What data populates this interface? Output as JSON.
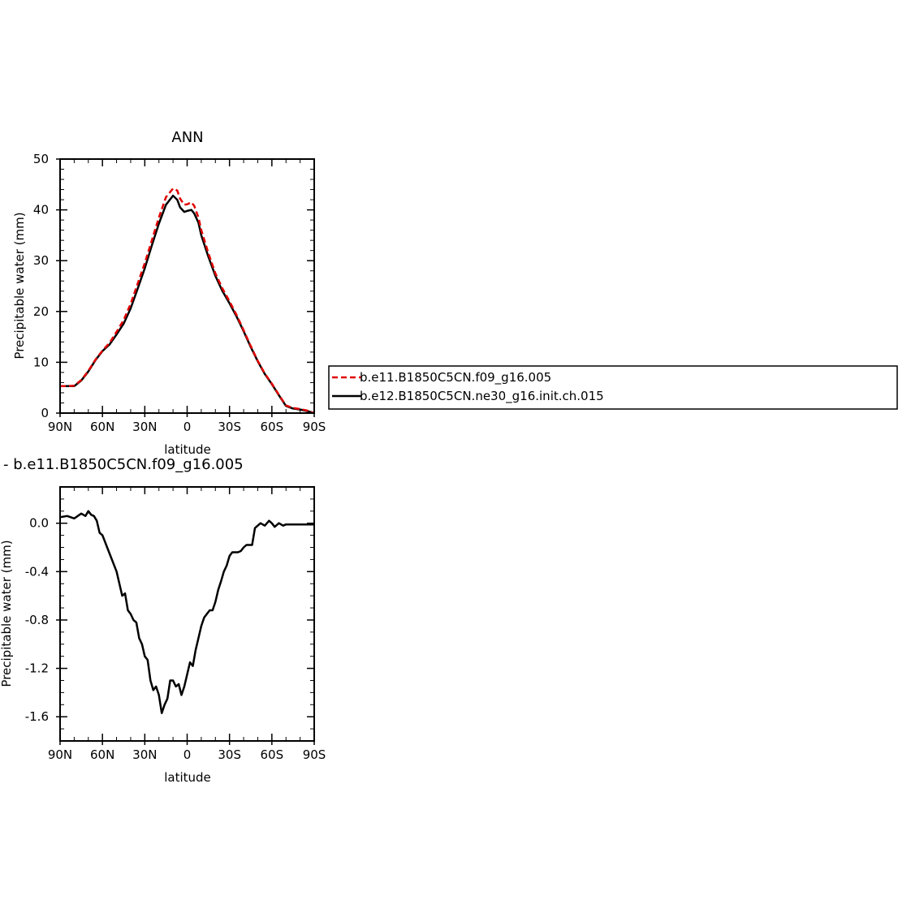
{
  "chart_data": [
    {
      "type": "line",
      "title": "ANN",
      "xlabel": "latitude",
      "ylabel": "Precipitable water (mm)",
      "xlim": [
        90,
        -90
      ],
      "ylim": [
        0,
        50
      ],
      "x_ticks": [
        90,
        60,
        30,
        0,
        -30,
        -60,
        -90
      ],
      "x_tick_labels": [
        "90N",
        "60N",
        "30N",
        "0",
        "30S",
        "60S",
        "90S"
      ],
      "y_ticks": [
        0,
        10,
        20,
        30,
        40,
        50
      ],
      "y_tick_labels": [
        "0",
        "10",
        "20",
        "30",
        "40",
        "50"
      ],
      "legend": "right",
      "series": [
        {
          "name": "b.e11.B1850C5CN.f09_g16.005",
          "color": "#e00000",
          "dash": "dashed",
          "x": [
            90,
            85,
            80,
            75,
            70,
            65,
            60,
            55,
            50,
            45,
            40,
            35,
            30,
            25,
            20,
            15,
            10,
            7,
            5,
            2,
            0,
            -3,
            -5,
            -8,
            -10,
            -15,
            -20,
            -25,
            -30,
            -35,
            -40,
            -45,
            -50,
            -55,
            -60,
            -65,
            -70,
            -75,
            -80,
            -85,
            -90
          ],
          "y": [
            5.3,
            5.3,
            5.4,
            6.5,
            8.3,
            10.5,
            12.3,
            13.8,
            16.0,
            18.3,
            21.5,
            25.5,
            29.5,
            34.0,
            38.5,
            42.5,
            44.2,
            43.8,
            42.2,
            41.0,
            41.1,
            41.5,
            40.8,
            38.5,
            36.0,
            31.5,
            27.5,
            24.5,
            22.0,
            19.3,
            16.3,
            13.2,
            10.3,
            7.8,
            5.8,
            3.6,
            1.5,
            1.0,
            0.8,
            0.5,
            0.0
          ]
        },
        {
          "name": "b.e12.B1850C5CN.ne30_g16.init.ch.015",
          "color": "#000000",
          "dash": "solid",
          "x": [
            90,
            85,
            80,
            75,
            70,
            65,
            60,
            55,
            50,
            45,
            40,
            35,
            30,
            25,
            20,
            15,
            10,
            7,
            5,
            2,
            0,
            -3,
            -5,
            -8,
            -10,
            -15,
            -20,
            -25,
            -30,
            -35,
            -40,
            -45,
            -50,
            -55,
            -60,
            -65,
            -70,
            -75,
            -80,
            -85,
            -90
          ],
          "y": [
            5.3,
            5.3,
            5.3,
            6.4,
            8.2,
            10.4,
            12.2,
            13.5,
            15.5,
            17.6,
            20.6,
            24.5,
            28.5,
            33.0,
            37.3,
            41.0,
            42.8,
            42.0,
            40.5,
            39.6,
            39.8,
            40.0,
            39.3,
            37.5,
            35.0,
            30.8,
            27.0,
            24.0,
            21.6,
            19.0,
            16.1,
            13.0,
            10.2,
            7.7,
            5.7,
            3.5,
            1.4,
            0.9,
            0.7,
            0.4,
            0.0
          ]
        }
      ]
    },
    {
      "type": "line",
      "title": "- b.e11.B1850C5CN.f09_g16.005",
      "xlabel": "latitude",
      "ylabel": "Precipitable water (mm)",
      "xlim": [
        90,
        -90
      ],
      "ylim": [
        -1.8,
        0.3
      ],
      "x_ticks": [
        90,
        60,
        30,
        0,
        -30,
        -60,
        -90
      ],
      "x_tick_labels": [
        "90N",
        "60N",
        "30N",
        "0",
        "30S",
        "60S",
        "90S"
      ],
      "y_ticks": [
        0.0,
        -0.4,
        -0.8,
        -1.2,
        -1.6
      ],
      "y_tick_labels": [
        "0.0",
        "-0.4",
        "-0.8",
        "-1.2",
        "-1.6"
      ],
      "series": [
        {
          "color": "#000000",
          "x": [
            90,
            85,
            80,
            75,
            72,
            70,
            68,
            66,
            64,
            62,
            60,
            55,
            50,
            46,
            44,
            42,
            40,
            38,
            36,
            34,
            32,
            30,
            28,
            26,
            24,
            22,
            20,
            18,
            16,
            14,
            12,
            10,
            8,
            6,
            4,
            2,
            0,
            -2,
            -4,
            -6,
            -8,
            -10,
            -12,
            -14,
            -16,
            -18,
            -20,
            -22,
            -24,
            -26,
            -28,
            -30,
            -32,
            -34,
            -36,
            -38,
            -40,
            -42,
            -44,
            -46,
            -48,
            -50,
            -52,
            -55,
            -58,
            -60,
            -62,
            -65,
            -68,
            -70,
            -73,
            -76,
            -80,
            -83,
            -86,
            -90
          ],
          "y": [
            0.05,
            0.06,
            0.04,
            0.08,
            0.06,
            0.1,
            0.07,
            0.06,
            0.02,
            -0.08,
            -0.1,
            -0.25,
            -0.4,
            -0.6,
            -0.58,
            -0.72,
            -0.75,
            -0.8,
            -0.82,
            -0.95,
            -1.0,
            -1.1,
            -1.13,
            -1.3,
            -1.38,
            -1.35,
            -1.42,
            -1.57,
            -1.5,
            -1.45,
            -1.3,
            -1.3,
            -1.35,
            -1.33,
            -1.42,
            -1.35,
            -1.25,
            -1.15,
            -1.18,
            -1.05,
            -0.95,
            -0.85,
            -0.78,
            -0.75,
            -0.72,
            -0.72,
            -0.65,
            -0.55,
            -0.48,
            -0.4,
            -0.35,
            -0.27,
            -0.24,
            -0.24,
            -0.24,
            -0.23,
            -0.2,
            -0.18,
            -0.18,
            -0.18,
            -0.04,
            -0.02,
            0.0,
            -0.02,
            0.02,
            0.0,
            -0.03,
            0.0,
            -0.02,
            -0.01,
            -0.01,
            -0.01,
            -0.01,
            -0.01,
            -0.01,
            -0.01
          ]
        }
      ]
    }
  ]
}
